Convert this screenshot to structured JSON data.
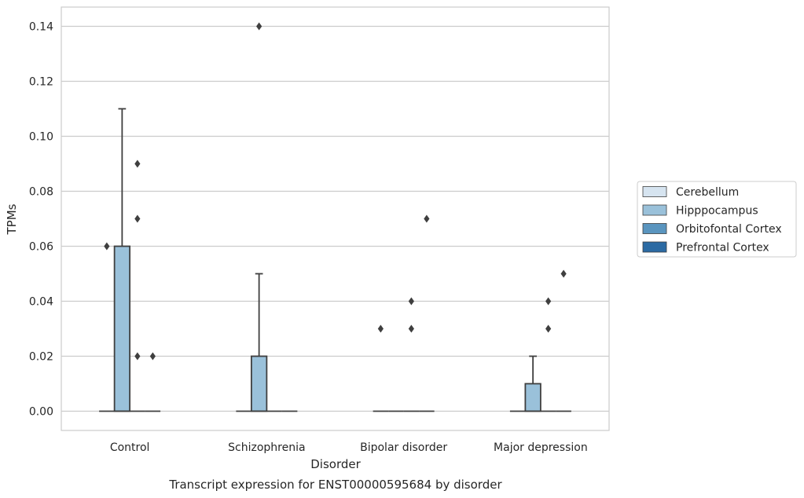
{
  "chart_data": {
    "type": "box",
    "caption": "Transcript expression for ENST00000595684 by disorder",
    "xlabel": "Disorder",
    "ylabel": "TPMs",
    "ylim": [
      -0.007,
      0.147
    ],
    "yticks": [
      "0.00",
      "0.02",
      "0.04",
      "0.06",
      "0.08",
      "0.10",
      "0.12",
      "0.14"
    ],
    "grid": "horizontal",
    "legend_position": "right",
    "categories": [
      "Control",
      "Schizophrenia",
      "Bipolar disorder",
      "Major depression"
    ],
    "series": [
      {
        "name": "Cerebellum",
        "color": "#d6e4f0",
        "boxes": [
          {
            "min": 0,
            "q1": 0,
            "median": 0,
            "q3": 0,
            "max": 0,
            "outliers": [
              0.06
            ]
          },
          {
            "min": 0,
            "q1": 0,
            "median": 0,
            "q3": 0,
            "max": 0,
            "outliers": []
          },
          {
            "min": 0,
            "q1": 0,
            "median": 0,
            "q3": 0,
            "max": 0,
            "outliers": [
              0.03
            ]
          },
          {
            "min": 0,
            "q1": 0,
            "median": 0,
            "q3": 0,
            "max": 0,
            "outliers": []
          }
        ]
      },
      {
        "name": "Hipppocampus",
        "color": "#9ac1da",
        "boxes": [
          {
            "min": 0,
            "q1": 0,
            "median": 0,
            "q3": 0.06,
            "max": 0.11,
            "outliers": []
          },
          {
            "min": 0,
            "q1": 0,
            "median": 0,
            "q3": 0.02,
            "max": 0.05,
            "outliers": [
              0.14
            ]
          },
          {
            "min": 0,
            "q1": 0,
            "median": 0,
            "q3": 0,
            "max": 0,
            "outliers": []
          },
          {
            "min": 0,
            "q1": 0,
            "median": 0,
            "q3": 0.01,
            "max": 0.02,
            "outliers": []
          }
        ]
      },
      {
        "name": "Orbitofontal Cortex",
        "color": "#5a95bf",
        "boxes": [
          {
            "min": 0,
            "q1": 0,
            "median": 0,
            "q3": 0,
            "max": 0,
            "outliers": [
              0.09,
              0.07,
              0.02
            ]
          },
          {
            "min": 0,
            "q1": 0,
            "median": 0,
            "q3": 0,
            "max": 0,
            "outliers": []
          },
          {
            "min": 0,
            "q1": 0,
            "median": 0,
            "q3": 0,
            "max": 0,
            "outliers": [
              0.04,
              0.03
            ]
          },
          {
            "min": 0,
            "q1": 0,
            "median": 0,
            "q3": 0,
            "max": 0,
            "outliers": [
              0.04,
              0.03
            ]
          }
        ]
      },
      {
        "name": "Prefrontal Cortex",
        "color": "#2b6aa3",
        "boxes": [
          {
            "min": 0,
            "q1": 0,
            "median": 0,
            "q3": 0,
            "max": 0,
            "outliers": [
              0.02
            ]
          },
          {
            "min": 0,
            "q1": 0,
            "median": 0,
            "q3": 0,
            "max": 0,
            "outliers": []
          },
          {
            "min": 0,
            "q1": 0,
            "median": 0,
            "q3": 0,
            "max": 0,
            "outliers": [
              0.07
            ]
          },
          {
            "min": 0,
            "q1": 0,
            "median": 0,
            "q3": 0,
            "max": 0,
            "outliers": [
              0.05
            ]
          }
        ]
      }
    ]
  }
}
